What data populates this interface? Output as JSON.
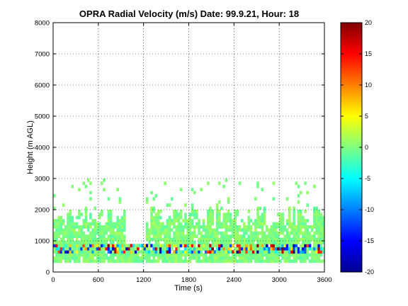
{
  "chart_data": {
    "type": "heatmap",
    "title": "OPRA Radial Velocity (m/s)  Date: 99.9.21, Hour: 18",
    "xlabel": "Time (s)",
    "ylabel": "Height (m AGL)",
    "xlim": [
      0,
      3600
    ],
    "ylim": [
      0,
      8000
    ],
    "x_ticks": [
      "0",
      "600",
      "1200",
      "1800",
      "2400",
      "3000",
      "3600"
    ],
    "y_ticks": [
      "0",
      "1000",
      "2000",
      "3000",
      "4000",
      "5000",
      "6000",
      "7000",
      "8000"
    ],
    "grid": true,
    "colorbar": {
      "range": [
        -20,
        20
      ],
      "ticks": [
        "20",
        "15",
        "10",
        "5",
        "0",
        "-5",
        "-10",
        "-15",
        "-20"
      ],
      "colormap": "jet"
    },
    "data_summary": {
      "time_bin_s": 30,
      "height_bin_m": 100,
      "typical_echo_top_m": 1800,
      "gap_start_s": 960,
      "gap_end_s": 1230,
      "gap_top_m": 900,
      "echo_base_m": 300,
      "background_velocity_ms": 0,
      "low_layer_velocity_range_ms": [
        -20,
        20
      ],
      "low_layer_heights_m": [
        600,
        900
      ],
      "isolated_echo_heights_m": [
        2500,
        3000
      ]
    }
  }
}
